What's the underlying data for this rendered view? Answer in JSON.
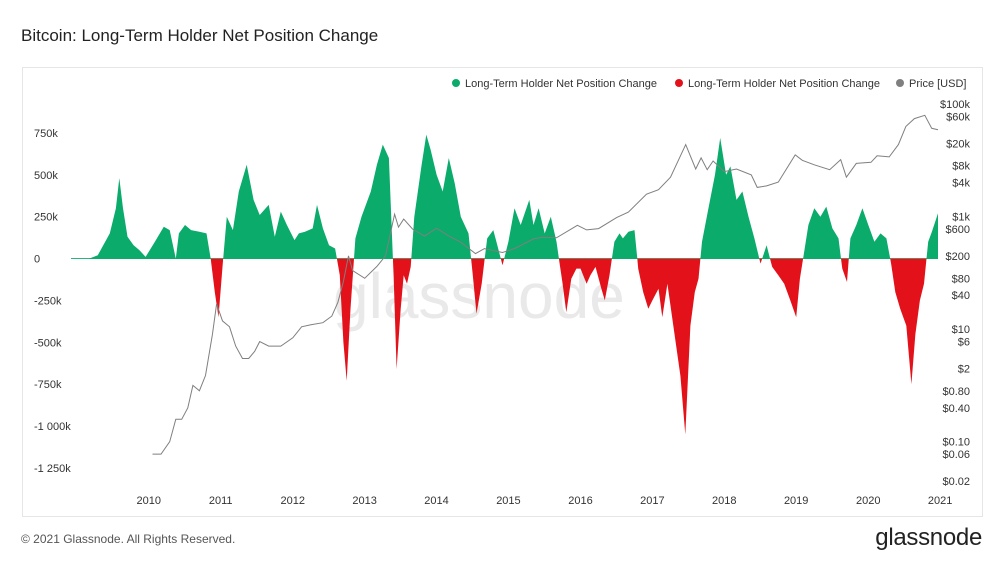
{
  "page": {
    "title": "Bitcoin: Long-Term Holder Net Position Change",
    "copyright": "© 2021 Glassnode. All Rights Reserved.",
    "brand": "glassnode",
    "watermark": "glassnode"
  },
  "chart_data": {
    "type": "area",
    "title": "Bitcoin: Long-Term Holder Net Position Change",
    "legend_position": "top-right",
    "legend": [
      {
        "label": "Long-Term Holder Net Position Change",
        "color": "#0aab6b"
      },
      {
        "label": "Long-Term Holder Net Position Change",
        "color": "#e3121a"
      },
      {
        "label": "Price [USD]",
        "color": "#7f7f7f"
      }
    ],
    "x_axis": {
      "type": "date",
      "ticks": [
        "2010",
        "2011",
        "2012",
        "2013",
        "2014",
        "2015",
        "2016",
        "2017",
        "2018",
        "2019",
        "2020",
        "2021"
      ],
      "range": [
        "2009-06-01",
        "2021-06-20"
      ]
    },
    "y_left": {
      "ticks": [
        "750k",
        "500k",
        "250k",
        "0",
        "-250k",
        "-500k",
        "-750k",
        "-1 000k",
        "-1 250k"
      ],
      "tick_values": [
        750000,
        500000,
        250000,
        0,
        -250000,
        -500000,
        -750000,
        -1000000,
        -1250000
      ],
      "range": [
        -1250000,
        1000000
      ]
    },
    "y_right": {
      "scale": "log",
      "ticks": [
        "$100k",
        "$60k",
        "$20k",
        "$8k",
        "$4k",
        "$1k",
        "$600",
        "$200",
        "$80",
        "$40",
        "$10",
        "$6",
        "$2",
        "$0.80",
        "$0.40",
        "$0.10",
        "$0.06",
        "$0.02"
      ],
      "tick_values": [
        100000,
        60000,
        20000,
        8000,
        4000,
        1000,
        600,
        200,
        80,
        40,
        10,
        6,
        2,
        0.8,
        0.4,
        0.1,
        0.06,
        0.02
      ]
    },
    "series": [
      {
        "name": "Long-Term Holder Net Position Change",
        "color_positive": "#0aab6b",
        "color_negative": "#e3121a",
        "points": [
          [
            "2009-09-01",
            0
          ],
          [
            "2009-10-15",
            20000
          ],
          [
            "2009-12-15",
            150000
          ],
          [
            "2010-01-15",
            300000
          ],
          [
            "2010-02-01",
            480000
          ],
          [
            "2010-02-20",
            300000
          ],
          [
            "2010-03-15",
            130000
          ],
          [
            "2010-04-15",
            80000
          ],
          [
            "2010-05-15",
            50000
          ],
          [
            "2010-06-15",
            10000
          ],
          [
            "2010-08-01",
            100000
          ],
          [
            "2010-09-15",
            190000
          ],
          [
            "2010-10-15",
            170000
          ],
          [
            "2010-11-15",
            0
          ],
          [
            "2010-12-01",
            150000
          ],
          [
            "2011-01-01",
            200000
          ],
          [
            "2011-02-01",
            170000
          ],
          [
            "2011-03-15",
            160000
          ],
          [
            "2011-04-20",
            150000
          ],
          [
            "2011-05-10",
            10000
          ],
          [
            "2011-06-01",
            -200000
          ],
          [
            "2011-06-20",
            -350000
          ],
          [
            "2011-07-10",
            -50000
          ],
          [
            "2011-08-01",
            250000
          ],
          [
            "2011-09-01",
            170000
          ],
          [
            "2011-10-01",
            400000
          ],
          [
            "2011-11-10",
            560000
          ],
          [
            "2011-12-15",
            350000
          ],
          [
            "2012-01-15",
            260000
          ],
          [
            "2012-03-01",
            320000
          ],
          [
            "2012-04-01",
            130000
          ],
          [
            "2012-05-01",
            280000
          ],
          [
            "2012-06-01",
            200000
          ],
          [
            "2012-07-10",
            110000
          ],
          [
            "2012-08-01",
            150000
          ],
          [
            "2012-09-01",
            160000
          ],
          [
            "2012-10-10",
            180000
          ],
          [
            "2012-11-01",
            320000
          ],
          [
            "2012-12-01",
            180000
          ],
          [
            "2013-01-01",
            80000
          ],
          [
            "2013-02-01",
            60000
          ],
          [
            "2013-02-25",
            -100000
          ],
          [
            "2013-03-15",
            -500000
          ],
          [
            "2013-04-01",
            -730000
          ],
          [
            "2013-04-20",
            -300000
          ],
          [
            "2013-05-15",
            120000
          ],
          [
            "2013-06-15",
            250000
          ],
          [
            "2013-08-01",
            400000
          ],
          [
            "2013-09-01",
            560000
          ],
          [
            "2013-10-01",
            680000
          ],
          [
            "2013-11-01",
            600000
          ],
          [
            "2013-11-25",
            -100000
          ],
          [
            "2013-12-10",
            -660000
          ],
          [
            "2013-12-31",
            -300000
          ],
          [
            "2014-01-15",
            -100000
          ],
          [
            "2014-02-01",
            -150000
          ],
          [
            "2014-02-20",
            -50000
          ],
          [
            "2014-03-10",
            250000
          ],
          [
            "2014-04-15",
            550000
          ],
          [
            "2014-05-10",
            740000
          ],
          [
            "2014-06-01",
            650000
          ],
          [
            "2014-07-01",
            500000
          ],
          [
            "2014-08-01",
            400000
          ],
          [
            "2014-09-01",
            600000
          ],
          [
            "2014-10-01",
            450000
          ],
          [
            "2014-11-01",
            250000
          ],
          [
            "2014-12-10",
            150000
          ],
          [
            "2015-01-01",
            -100000
          ],
          [
            "2015-01-20",
            -330000
          ],
          [
            "2015-02-15",
            -150000
          ],
          [
            "2015-03-15",
            120000
          ],
          [
            "2015-04-15",
            170000
          ],
          [
            "2015-05-01",
            100000
          ],
          [
            "2015-06-01",
            -40000
          ],
          [
            "2015-07-01",
            100000
          ],
          [
            "2015-08-01",
            300000
          ],
          [
            "2015-09-01",
            200000
          ],
          [
            "2015-10-15",
            350000
          ],
          [
            "2015-11-05",
            200000
          ],
          [
            "2015-12-01",
            300000
          ],
          [
            "2016-01-01",
            150000
          ],
          [
            "2016-02-01",
            250000
          ],
          [
            "2016-03-01",
            100000
          ],
          [
            "2016-04-01",
            -150000
          ],
          [
            "2016-04-20",
            -320000
          ],
          [
            "2016-05-15",
            -120000
          ],
          [
            "2016-06-10",
            -60000
          ],
          [
            "2016-07-01",
            -60000
          ],
          [
            "2016-08-01",
            -150000
          ],
          [
            "2016-08-20",
            -100000
          ],
          [
            "2016-09-15",
            -50000
          ],
          [
            "2016-10-15",
            -180000
          ],
          [
            "2016-11-01",
            -250000
          ],
          [
            "2016-11-25",
            -100000
          ],
          [
            "2016-12-20",
            100000
          ],
          [
            "2017-01-15",
            150000
          ],
          [
            "2017-02-01",
            120000
          ],
          [
            "2017-03-01",
            160000
          ],
          [
            "2017-04-01",
            170000
          ],
          [
            "2017-04-20",
            -60000
          ],
          [
            "2017-05-15",
            -200000
          ],
          [
            "2017-06-10",
            -300000
          ],
          [
            "2017-07-01",
            -250000
          ],
          [
            "2017-08-01",
            -180000
          ],
          [
            "2017-08-20",
            -350000
          ],
          [
            "2017-09-15",
            -150000
          ],
          [
            "2017-10-15",
            -400000
          ],
          [
            "2017-11-20",
            -700000
          ],
          [
            "2017-12-15",
            -1050000
          ],
          [
            "2018-01-10",
            -400000
          ],
          [
            "2018-02-01",
            -200000
          ],
          [
            "2018-02-20",
            -120000
          ],
          [
            "2018-03-10",
            100000
          ],
          [
            "2018-04-15",
            320000
          ],
          [
            "2018-05-15",
            500000
          ],
          [
            "2018-06-10",
            720000
          ],
          [
            "2018-07-10",
            500000
          ],
          [
            "2018-08-01",
            550000
          ],
          [
            "2018-09-01",
            350000
          ],
          [
            "2018-10-01",
            400000
          ],
          [
            "2018-11-01",
            250000
          ],
          [
            "2018-12-01",
            120000
          ],
          [
            "2019-01-01",
            -30000
          ],
          [
            "2019-02-01",
            80000
          ],
          [
            "2019-03-01",
            -50000
          ],
          [
            "2019-04-01",
            -100000
          ],
          [
            "2019-05-01",
            -150000
          ],
          [
            "2019-06-01",
            -250000
          ],
          [
            "2019-07-01",
            -350000
          ],
          [
            "2019-07-20",
            -120000
          ],
          [
            "2019-09-01",
            200000
          ],
          [
            "2019-10-01",
            300000
          ],
          [
            "2019-11-01",
            250000
          ],
          [
            "2019-12-01",
            310000
          ],
          [
            "2020-01-01",
            180000
          ],
          [
            "2020-02-01",
            120000
          ],
          [
            "2020-02-20",
            -60000
          ],
          [
            "2020-03-15",
            -140000
          ],
          [
            "2020-04-01",
            120000
          ],
          [
            "2020-05-01",
            200000
          ],
          [
            "2020-06-01",
            300000
          ],
          [
            "2020-07-01",
            200000
          ],
          [
            "2020-08-01",
            100000
          ],
          [
            "2020-09-01",
            150000
          ],
          [
            "2020-10-01",
            120000
          ],
          [
            "2020-10-25",
            -30000
          ],
          [
            "2020-11-15",
            -200000
          ],
          [
            "2020-12-10",
            -300000
          ],
          [
            "2021-01-10",
            -400000
          ],
          [
            "2021-02-05",
            -750000
          ],
          [
            "2021-02-25",
            -450000
          ],
          [
            "2021-03-20",
            -250000
          ],
          [
            "2021-04-10",
            -150000
          ],
          [
            "2021-05-01",
            100000
          ],
          [
            "2021-05-20",
            160000
          ],
          [
            "2021-06-20",
            270000
          ]
        ]
      },
      {
        "name": "Price [USD]",
        "color": "#7f7f7f",
        "points": [
          [
            "2010-07-20",
            0.06
          ],
          [
            "2010-09-01",
            0.06
          ],
          [
            "2010-10-15",
            0.1
          ],
          [
            "2010-11-15",
            0.25
          ],
          [
            "2010-12-15",
            0.25
          ],
          [
            "2011-01-15",
            0.4
          ],
          [
            "2011-02-10",
            1.0
          ],
          [
            "2011-03-15",
            0.8
          ],
          [
            "2011-04-15",
            1.5
          ],
          [
            "2011-05-20",
            8
          ],
          [
            "2011-06-10",
            28
          ],
          [
            "2011-07-10",
            14
          ],
          [
            "2011-08-15",
            11
          ],
          [
            "2011-09-15",
            5
          ],
          [
            "2011-10-20",
            3
          ],
          [
            "2011-11-20",
            3
          ],
          [
            "2011-12-20",
            4
          ],
          [
            "2012-01-15",
            6
          ],
          [
            "2012-03-01",
            5
          ],
          [
            "2012-05-01",
            5
          ],
          [
            "2012-07-01",
            7
          ],
          [
            "2012-08-15",
            11
          ],
          [
            "2012-10-01",
            12
          ],
          [
            "2012-12-01",
            13
          ],
          [
            "2013-01-15",
            17
          ],
          [
            "2013-02-15",
            30
          ],
          [
            "2013-03-15",
            70
          ],
          [
            "2013-04-10",
            200
          ],
          [
            "2013-05-01",
            110
          ],
          [
            "2013-07-01",
            80
          ],
          [
            "2013-09-01",
            130
          ],
          [
            "2013-10-15",
            200
          ],
          [
            "2013-11-30",
            1100
          ],
          [
            "2013-12-20",
            650
          ],
          [
            "2014-01-15",
            900
          ],
          [
            "2014-03-01",
            600
          ],
          [
            "2014-05-01",
            450
          ],
          [
            "2014-07-01",
            620
          ],
          [
            "2014-09-01",
            450
          ],
          [
            "2014-11-01",
            350
          ],
          [
            "2015-01-15",
            220
          ],
          [
            "2015-03-01",
            270
          ],
          [
            "2015-06-01",
            230
          ],
          [
            "2015-08-01",
            270
          ],
          [
            "2015-11-05",
            400
          ],
          [
            "2015-12-20",
            430
          ],
          [
            "2016-03-01",
            420
          ],
          [
            "2016-06-15",
            700
          ],
          [
            "2016-08-01",
            580
          ],
          [
            "2016-10-01",
            610
          ],
          [
            "2016-12-31",
            960
          ],
          [
            "2017-03-01",
            1200
          ],
          [
            "2017-06-01",
            2500
          ],
          [
            "2017-08-01",
            3000
          ],
          [
            "2017-10-01",
            5000
          ],
          [
            "2017-12-17",
            19000
          ],
          [
            "2018-02-06",
            7000
          ],
          [
            "2018-03-05",
            11000
          ],
          [
            "2018-04-05",
            6800
          ],
          [
            "2018-05-05",
            9700
          ],
          [
            "2018-07-01",
            6300
          ],
          [
            "2018-09-01",
            7000
          ],
          [
            "2018-11-15",
            5500
          ],
          [
            "2018-12-15",
            3300
          ],
          [
            "2019-02-01",
            3500
          ],
          [
            "2019-04-01",
            4100
          ],
          [
            "2019-06-26",
            12500
          ],
          [
            "2019-08-01",
            10000
          ],
          [
            "2019-10-01",
            8300
          ],
          [
            "2019-12-18",
            6800
          ],
          [
            "2020-02-12",
            10300
          ],
          [
            "2020-03-12",
            5000
          ],
          [
            "2020-05-01",
            8800
          ],
          [
            "2020-07-15",
            9200
          ],
          [
            "2020-08-15",
            12000
          ],
          [
            "2020-10-15",
            11500
          ],
          [
            "2020-12-01",
            19000
          ],
          [
            "2021-01-08",
            40000
          ],
          [
            "2021-02-20",
            55000
          ],
          [
            "2021-04-14",
            63000
          ],
          [
            "2021-05-19",
            37000
          ],
          [
            "2021-06-20",
            35000
          ]
        ]
      }
    ]
  }
}
